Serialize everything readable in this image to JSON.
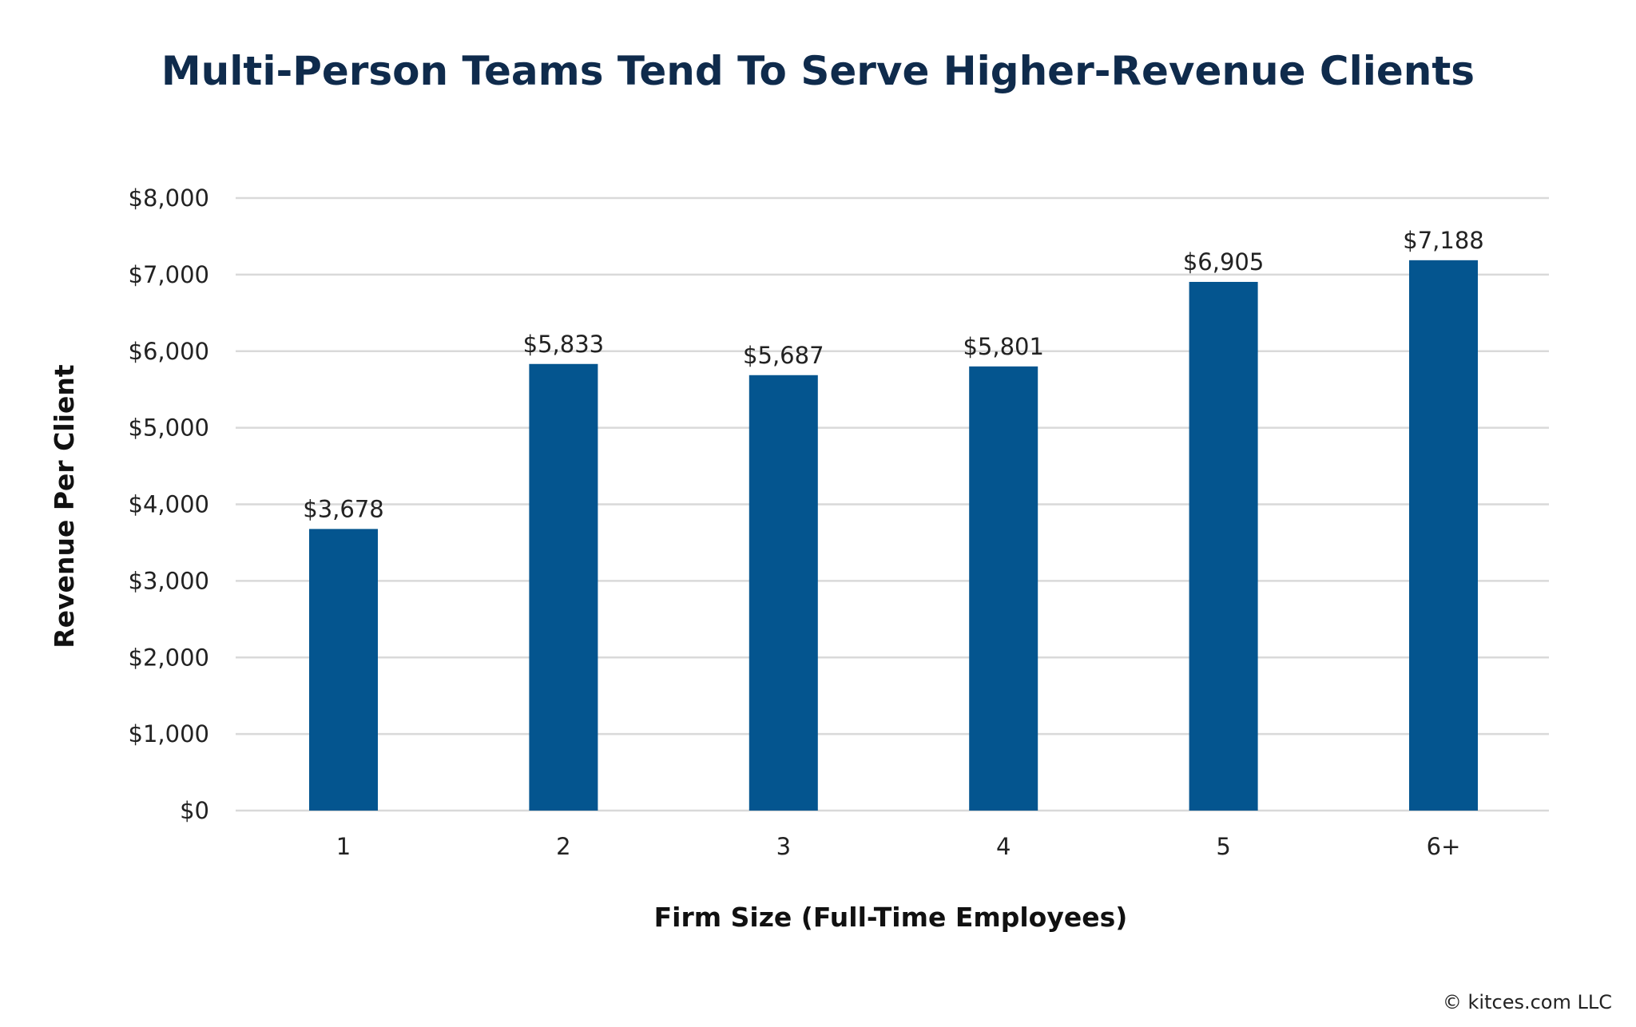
{
  "chart_data": {
    "type": "bar",
    "title": "Multi-Person Teams Tend To Serve Higher-Revenue Clients",
    "xlabel": "Firm Size (Full-Time Employees)",
    "ylabel": "Revenue Per Client",
    "categories": [
      "1",
      "2",
      "3",
      "4",
      "5",
      "6+"
    ],
    "values": [
      3678,
      5833,
      5687,
      5801,
      6905,
      7188
    ],
    "data_labels": [
      "$3,678",
      "$5,833",
      "$5,687",
      "$5,801",
      "$6,905",
      "$7,188"
    ],
    "ylim": [
      0,
      8000
    ],
    "yticks": [
      0,
      1000,
      2000,
      3000,
      4000,
      5000,
      6000,
      7000,
      8000
    ],
    "ytick_labels": [
      "$0",
      "$1,000",
      "$2,000",
      "$3,000",
      "$4,000",
      "$5,000",
      "$6,000",
      "$7,000",
      "$8,000"
    ],
    "grid": true,
    "bar_color": "#04558f",
    "grid_color": "#d9d9d9"
  },
  "footer": {
    "copyright": "© kitces.com LLC"
  }
}
